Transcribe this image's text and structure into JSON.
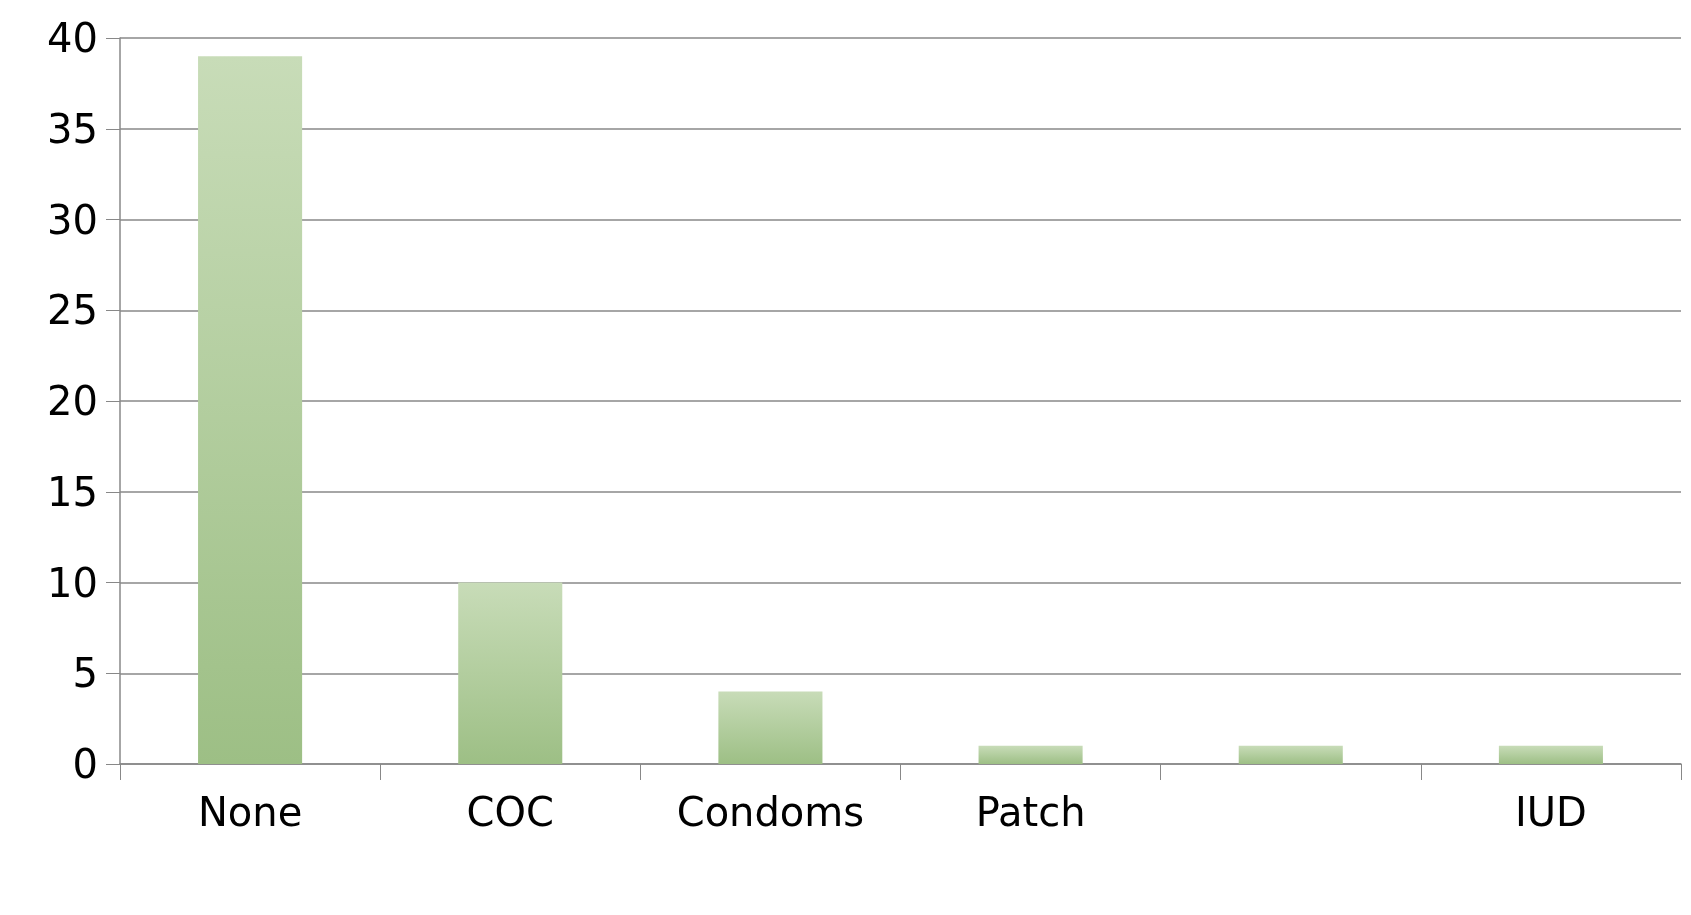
{
  "chart_data": {
    "type": "bar",
    "categories": [
      "None",
      "COC",
      "Condoms",
      "Patch",
      null,
      "IUD"
    ],
    "values": [
      39,
      10,
      4,
      1,
      1,
      1
    ],
    "color": "#9dbf85",
    "ylim": [
      0,
      40
    ],
    "yticks": [
      0,
      5,
      10,
      15,
      20,
      25,
      30,
      35,
      40
    ],
    "grid": "y"
  }
}
